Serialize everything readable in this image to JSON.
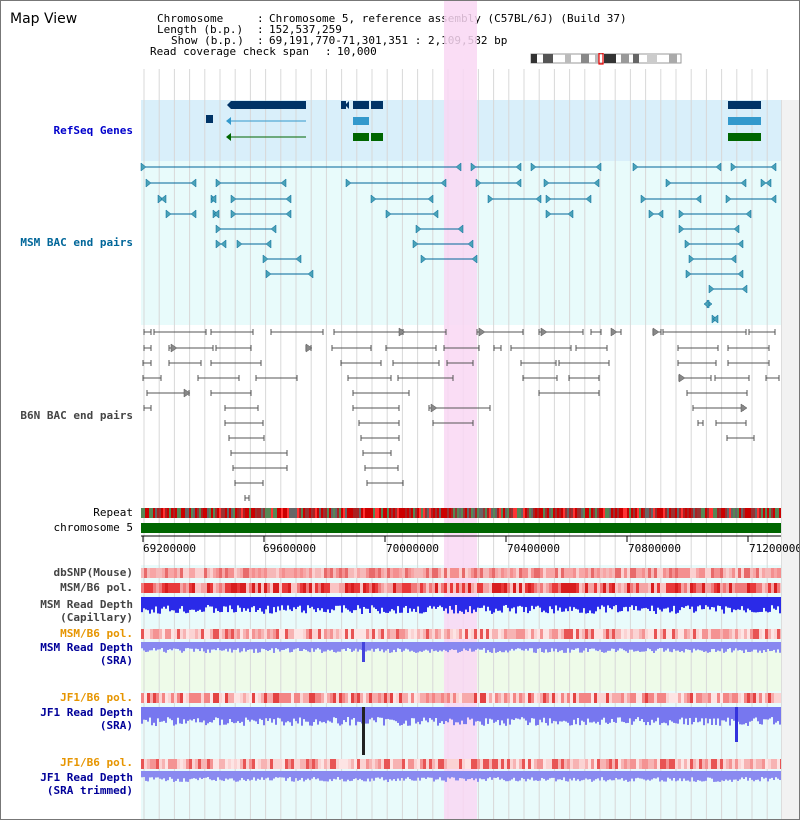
{
  "page_title": "Map View",
  "header": {
    "chromosome_label": "Chromosome",
    "chromosome_value": "Chromosome 5, reference assembly (C57BL/6J) (Build 37)",
    "length_label": "Length (b.p.)",
    "length_value": "152,537,259",
    "show_label": "Show (b.p.)",
    "show_value": "69,191,770-71,301,351 : 2,109,582 bp",
    "coverage_label": "Read coverage check span",
    "coverage_value": "10,000"
  },
  "tracks": {
    "refseq": "RefSeq Genes",
    "msm_bac": "MSM BAC end pairs",
    "b6n_bac": "B6N BAC end pairs",
    "repeat": "Repeat",
    "chromosome": "chromosome 5",
    "dbsnp": "dbSNP(Mouse)",
    "msm_b6_pol_1": "MSM/B6 pol.",
    "msm_read_depth_cap_1": "MSM Read Depth",
    "msm_read_depth_cap_2": "(Capillary)",
    "msm_b6_pol_2": "MSM/B6 pol.",
    "msm_read_depth_sra_1": "MSM Read Depth",
    "msm_read_depth_sra_2": "(SRA)",
    "jf1_b6_pol_1": "JF1/B6 pol.",
    "jf1_read_depth_sra_1": "JF1 Read Depth",
    "jf1_read_depth_sra_2": "(SRA)",
    "jf1_b6_pol_2": "JF1/B6 pol.",
    "jf1_read_depth_trim_1": "JF1 Read Depth",
    "jf1_read_depth_trim_2": "(SRA trimmed)"
  },
  "axis": {
    "ticks": [
      "69200000",
      "69600000",
      "70000000",
      "70400000",
      "70800000",
      "71200000"
    ]
  },
  "colors": {
    "refseq_bg": "#d9effa",
    "msm_bg": "#e8fbfb",
    "highlight": "#f9d7f3",
    "chrom_bar": "#006600",
    "refseq_label": "#0000cc",
    "msm_label": "#006699",
    "b6n_label": "#444444",
    "orange_label": "#e69500",
    "blue_label": "#000099"
  }
}
